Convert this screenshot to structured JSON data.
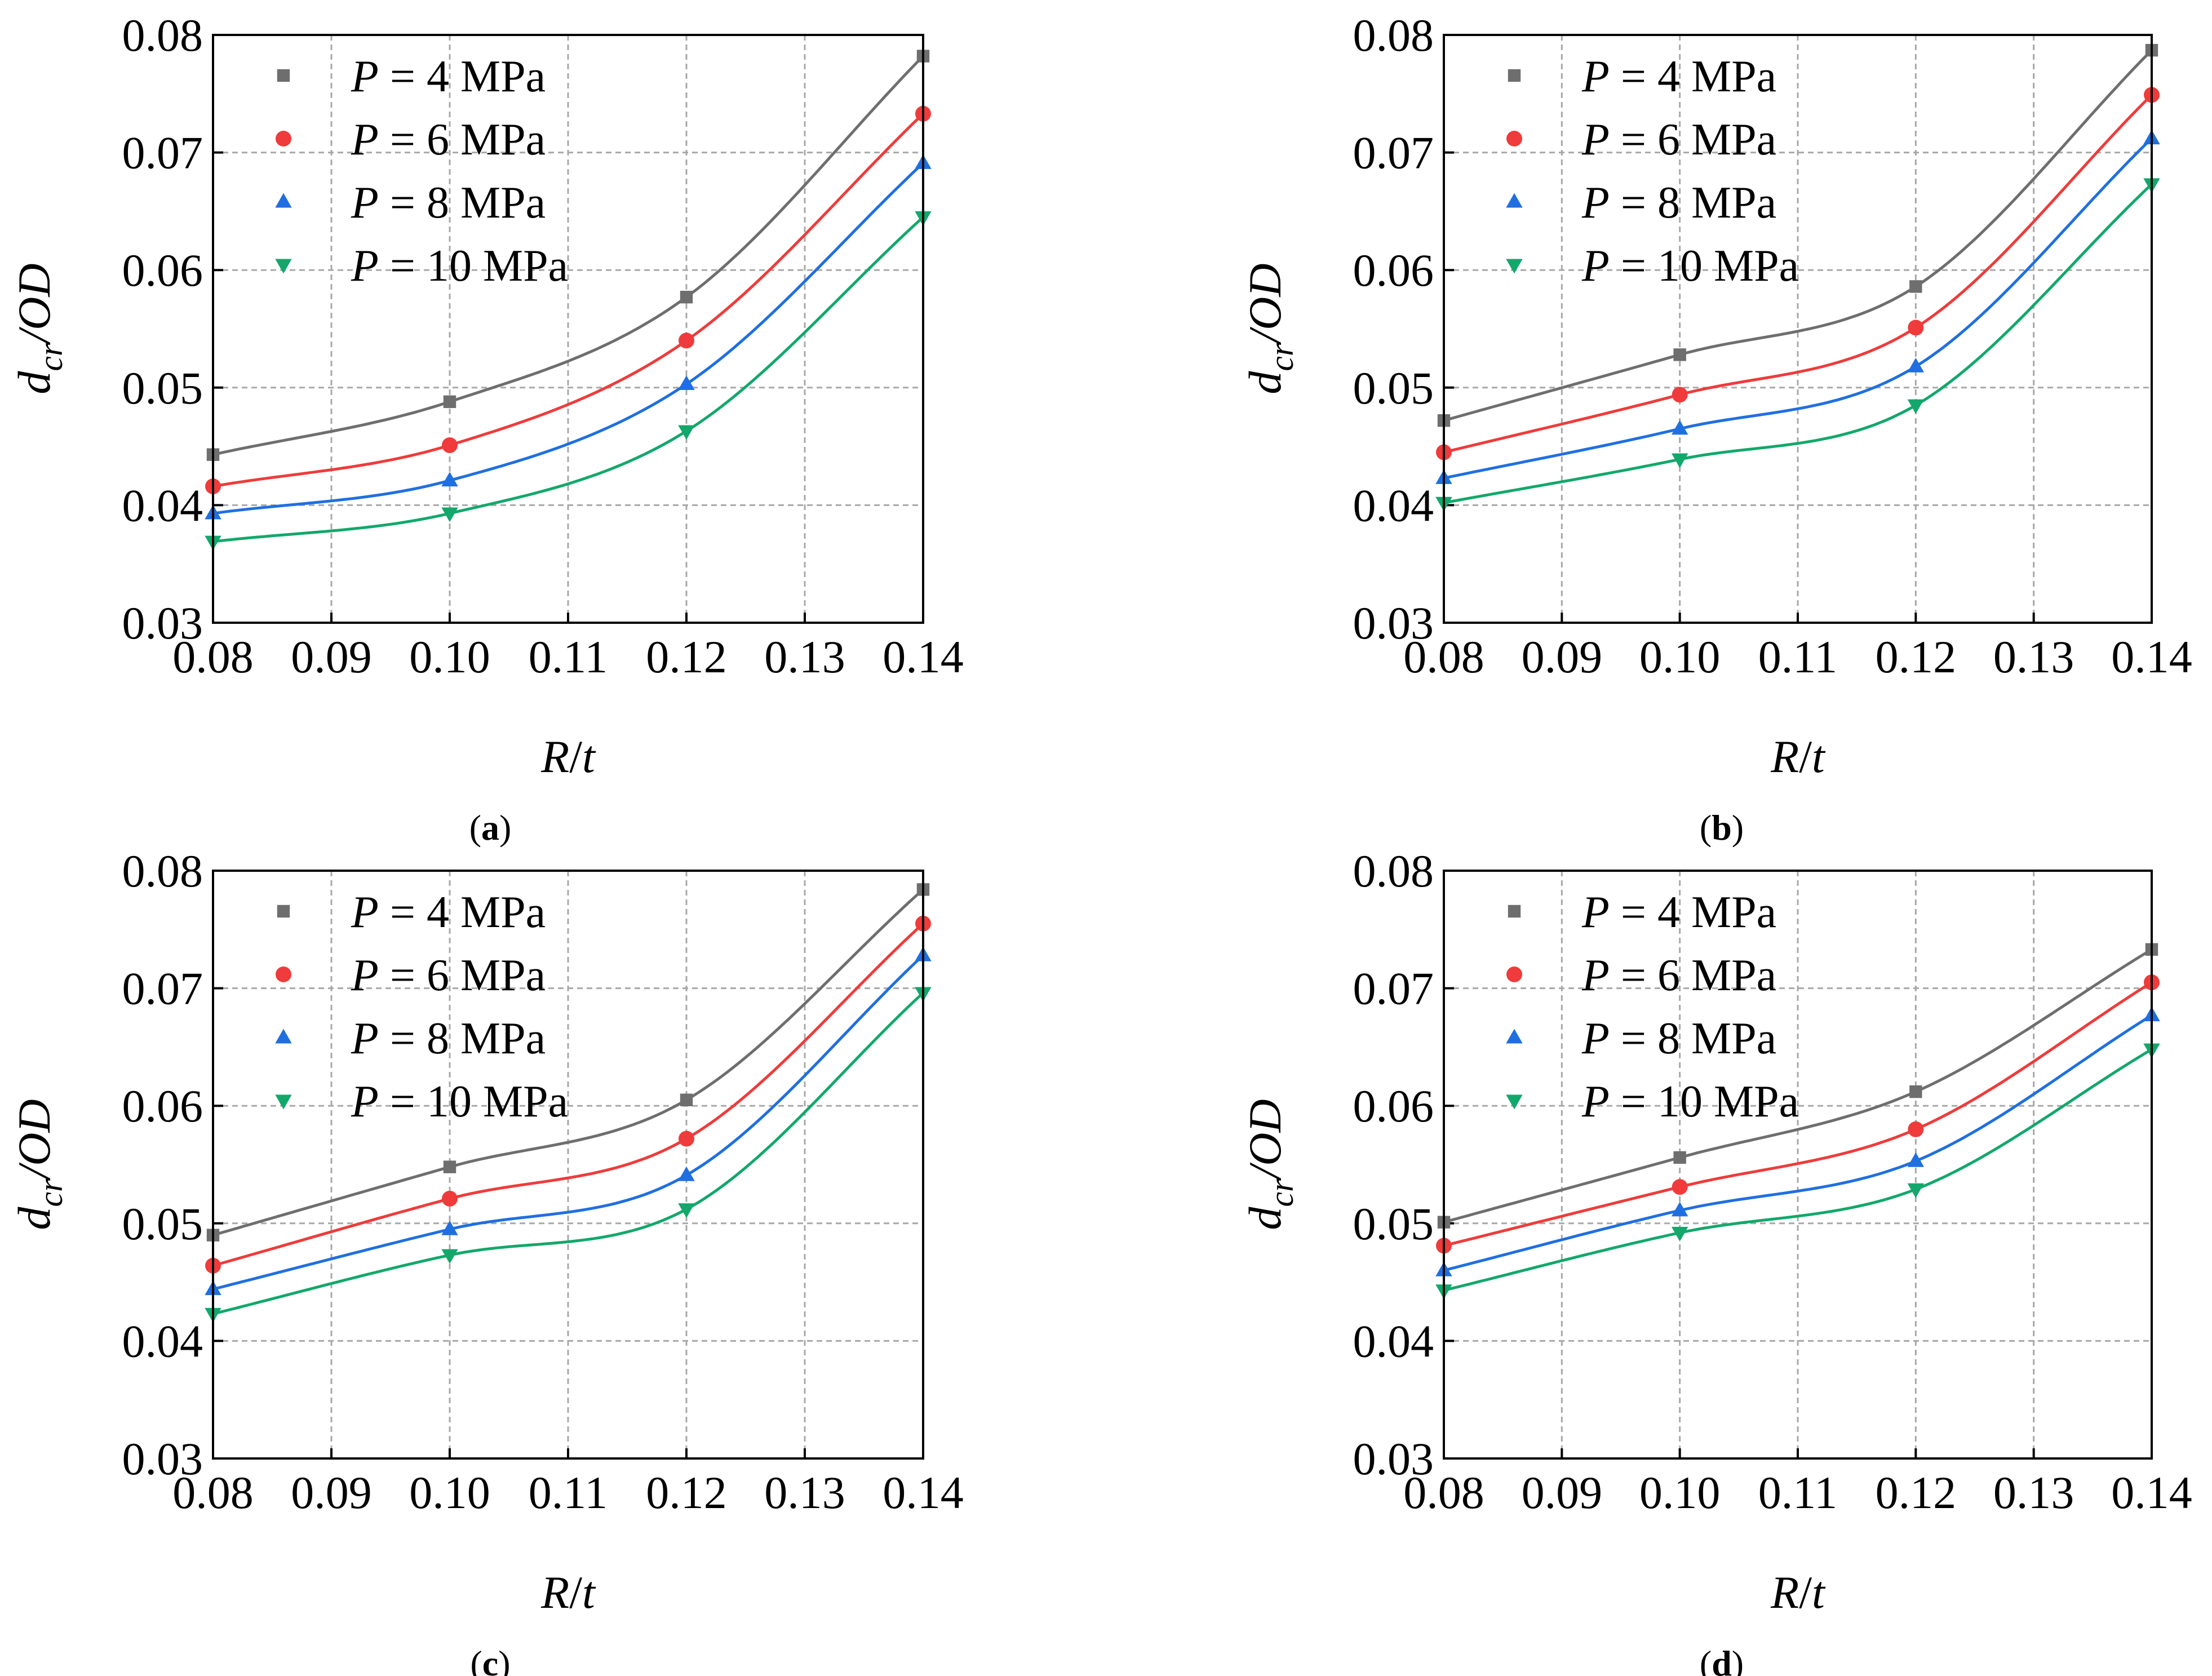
{
  "figure": {
    "type": "multi-panel line chart",
    "panel_order": [
      "a",
      "b",
      "c",
      "d"
    ]
  },
  "colors": {
    "P4": "#6e6e6e",
    "P6": "#ef3b3b",
    "P8": "#1f6fe0",
    "P10": "#12a86b"
  },
  "chart_data": [
    {
      "panel": "a",
      "caption_open": "(",
      "caption_letter": "a",
      "caption_close": ")",
      "type": "line",
      "title": "",
      "xlabel_italic1": "R",
      "xlabel_sep": "/",
      "xlabel_italic2": "t",
      "ylabel_italic": "d",
      "ylabel_sub": "cr",
      "ylabel_rest": "/OD",
      "xlim": [
        0.08,
        0.14
      ],
      "ylim": [
        0.03,
        0.08
      ],
      "xticks": [
        "0.08",
        "0.09",
        "0.10",
        "0.11",
        "0.12",
        "0.13",
        "0.14"
      ],
      "yticks": [
        "0.03",
        "0.04",
        "0.05",
        "0.06",
        "0.07",
        "0.08"
      ],
      "x": [
        0.08,
        0.1,
        0.12,
        0.14
      ],
      "grid": true,
      "legend_position": "top-left",
      "series": [
        {
          "key": "P4",
          "marker": "square",
          "legend_var": "P",
          "legend_text": " = 4 MPa",
          "values": [
            0.0443,
            0.0488,
            0.0577,
            0.0782
          ]
        },
        {
          "key": "P6",
          "marker": "circle",
          "legend_var": "P",
          "legend_text": " = 6 MPa",
          "values": [
            0.0416,
            0.0451,
            0.054,
            0.0733
          ]
        },
        {
          "key": "P8",
          "marker": "triangle",
          "legend_var": "P",
          "legend_text": " = 8 MPa",
          "values": [
            0.0393,
            0.0421,
            0.0503,
            0.0691
          ]
        },
        {
          "key": "P10",
          "marker": "tri-down",
          "legend_var": "P",
          "legend_text": " = 10 MPa",
          "values": [
            0.0369,
            0.0393,
            0.0463,
            0.0645
          ]
        }
      ]
    },
    {
      "panel": "b",
      "caption_open": "(",
      "caption_letter": "b",
      "caption_close": ")",
      "type": "line",
      "title": "",
      "xlabel_italic1": "R",
      "xlabel_sep": "/",
      "xlabel_italic2": "t",
      "ylabel_italic": "d",
      "ylabel_sub": "cr",
      "ylabel_rest": "/OD",
      "xlim": [
        0.08,
        0.14
      ],
      "ylim": [
        0.03,
        0.08
      ],
      "xticks": [
        "0.08",
        "0.09",
        "0.10",
        "0.11",
        "0.12",
        "0.13",
        "0.14"
      ],
      "yticks": [
        "0.03",
        "0.04",
        "0.05",
        "0.06",
        "0.07",
        "0.08"
      ],
      "x": [
        0.08,
        0.1,
        0.12,
        0.14
      ],
      "grid": true,
      "legend_position": "top-left",
      "series": [
        {
          "key": "P4",
          "marker": "square",
          "legend_var": "P",
          "legend_text": " = 4 MPa",
          "values": [
            0.0472,
            0.0528,
            0.0586,
            0.0787
          ]
        },
        {
          "key": "P6",
          "marker": "circle",
          "legend_var": "P",
          "legend_text": " = 6 MPa",
          "values": [
            0.0445,
            0.0494,
            0.0551,
            0.0749
          ]
        },
        {
          "key": "P8",
          "marker": "triangle",
          "legend_var": "P",
          "legend_text": " = 8 MPa",
          "values": [
            0.0423,
            0.0465,
            0.0518,
            0.0712
          ]
        },
        {
          "key": "P10",
          "marker": "tri-down",
          "legend_var": "P",
          "legend_text": " = 10 MPa",
          "values": [
            0.0402,
            0.0439,
            0.0485,
            0.0673
          ]
        }
      ]
    },
    {
      "panel": "c",
      "caption_open": "(",
      "caption_letter": "c",
      "caption_close": ")",
      "type": "line",
      "title": "",
      "xlabel_italic1": "R",
      "xlabel_sep": "/",
      "xlabel_italic2": "t",
      "ylabel_italic": "d",
      "ylabel_sub": "cr",
      "ylabel_rest": "/OD",
      "xlim": [
        0.08,
        0.14
      ],
      "ylim": [
        0.03,
        0.08
      ],
      "xticks": [
        "0.08",
        "0.09",
        "0.10",
        "0.11",
        "0.12",
        "0.13",
        "0.14"
      ],
      "yticks": [
        "0.03",
        "0.04",
        "0.05",
        "0.06",
        "0.07",
        "0.08"
      ],
      "x": [
        0.08,
        0.1,
        0.12,
        0.14
      ],
      "grid": true,
      "legend_position": "top-left",
      "series": [
        {
          "key": "P4",
          "marker": "square",
          "legend_var": "P",
          "legend_text": " = 4 MPa",
          "values": [
            0.049,
            0.0548,
            0.0605,
            0.0784
          ]
        },
        {
          "key": "P6",
          "marker": "circle",
          "legend_var": "P",
          "legend_text": " = 6 MPa",
          "values": [
            0.0464,
            0.0521,
            0.0572,
            0.0755
          ]
        },
        {
          "key": "P8",
          "marker": "triangle",
          "legend_var": "P",
          "legend_text": " = 8 MPa",
          "values": [
            0.0444,
            0.0495,
            0.0541,
            0.0728
          ]
        },
        {
          "key": "P10",
          "marker": "tri-down",
          "legend_var": "P",
          "legend_text": " = 10 MPa",
          "values": [
            0.0423,
            0.0473,
            0.0512,
            0.0696
          ]
        }
      ]
    },
    {
      "panel": "d",
      "caption_open": "(",
      "caption_letter": "d",
      "caption_close": ")",
      "type": "line",
      "title": "",
      "xlabel_italic1": "R",
      "xlabel_sep": "/",
      "xlabel_italic2": "t",
      "ylabel_italic": "d",
      "ylabel_sub": "cr",
      "ylabel_rest": "/OD",
      "xlim": [
        0.08,
        0.14
      ],
      "ylim": [
        0.03,
        0.08
      ],
      "xticks": [
        "0.08",
        "0.09",
        "0.10",
        "0.11",
        "0.12",
        "0.13",
        "0.14"
      ],
      "yticks": [
        "0.03",
        "0.04",
        "0.05",
        "0.06",
        "0.07",
        "0.08"
      ],
      "x": [
        0.08,
        0.1,
        0.12,
        0.14
      ],
      "grid": true,
      "legend_position": "top-left",
      "series": [
        {
          "key": "P4",
          "marker": "square",
          "legend_var": "P",
          "legend_text": " = 4 MPa",
          "values": [
            0.0501,
            0.0556,
            0.0612,
            0.0733
          ]
        },
        {
          "key": "P6",
          "marker": "circle",
          "legend_var": "P",
          "legend_text": " = 6 MPa",
          "values": [
            0.0481,
            0.0531,
            0.058,
            0.0705
          ]
        },
        {
          "key": "P8",
          "marker": "triangle",
          "legend_var": "P",
          "legend_text": " = 8 MPa",
          "values": [
            0.046,
            0.0511,
            0.0553,
            0.0677
          ]
        },
        {
          "key": "P10",
          "marker": "tri-down",
          "legend_var": "P",
          "legend_text": " = 10 MPa",
          "values": [
            0.0443,
            0.0492,
            0.0529,
            0.0648
          ]
        }
      ]
    }
  ]
}
